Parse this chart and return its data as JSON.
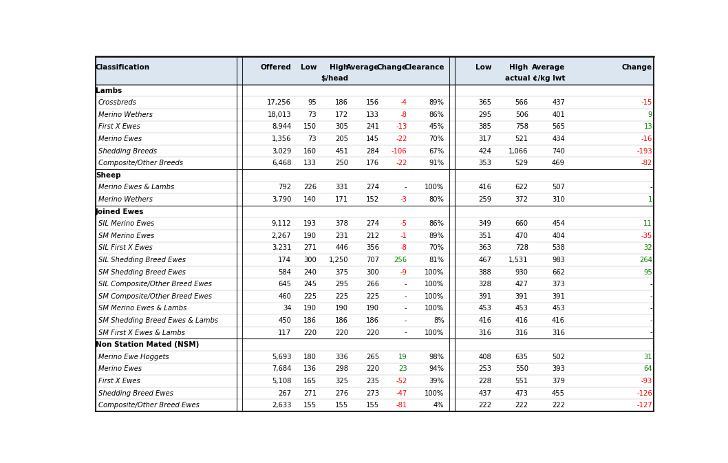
{
  "sections": [
    {
      "section_label": "Lambs",
      "rows": [
        {
          "label": "Crossbreds",
          "offered": "17,256",
          "low": "95",
          "high": "186",
          "avg": "156",
          "change": "-4",
          "change_color": "red",
          "clearance": "89%",
          "low2": "365",
          "high2": "566",
          "avg2": "437",
          "change2": "-15",
          "change2_color": "red"
        },
        {
          "label": "Merino Wethers",
          "offered": "18,013",
          "low": "73",
          "high": "172",
          "avg": "133",
          "change": "-8",
          "change_color": "red",
          "clearance": "86%",
          "low2": "295",
          "high2": "506",
          "avg2": "401",
          "change2": "9",
          "change2_color": "green"
        },
        {
          "label": "First X Ewes",
          "offered": "8,944",
          "low": "150",
          "high": "305",
          "avg": "241",
          "change": "-13",
          "change_color": "red",
          "clearance": "45%",
          "low2": "385",
          "high2": "758",
          "avg2": "565",
          "change2": "13",
          "change2_color": "green"
        },
        {
          "label": "Merino Ewes",
          "offered": "1,356",
          "low": "73",
          "high": "205",
          "avg": "145",
          "change": "-22",
          "change_color": "red",
          "clearance": "70%",
          "low2": "317",
          "high2": "521",
          "avg2": "434",
          "change2": "-16",
          "change2_color": "red"
        },
        {
          "label": "Shedding Breeds",
          "offered": "3,029",
          "low": "160",
          "high": "451",
          "avg": "284",
          "change": "-106",
          "change_color": "red",
          "clearance": "67%",
          "low2": "424",
          "high2": "1,066",
          "avg2": "740",
          "change2": "-193",
          "change2_color": "red"
        },
        {
          "label": "Composite/Other Breeds",
          "offered": "6,468",
          "low": "133",
          "high": "250",
          "avg": "176",
          "change": "-22",
          "change_color": "red",
          "clearance": "91%",
          "low2": "353",
          "high2": "529",
          "avg2": "469",
          "change2": "-82",
          "change2_color": "red"
        }
      ]
    },
    {
      "section_label": "Sheep",
      "rows": [
        {
          "label": "Merino Ewes & Lambs",
          "offered": "792",
          "low": "226",
          "high": "331",
          "avg": "274",
          "change": "-",
          "change_color": "black",
          "clearance": "100%",
          "low2": "416",
          "high2": "622",
          "avg2": "507",
          "change2": "-",
          "change2_color": "black"
        },
        {
          "label": "Merino Wethers",
          "offered": "3,790",
          "low": "140",
          "high": "171",
          "avg": "152",
          "change": "-3",
          "change_color": "red",
          "clearance": "80%",
          "low2": "259",
          "high2": "372",
          "avg2": "310",
          "change2": "1",
          "change2_color": "green"
        }
      ]
    },
    {
      "section_label": "Joined Ewes",
      "rows": [
        {
          "label": "SIL Merino Ewes",
          "offered": "9,112",
          "low": "193",
          "high": "378",
          "avg": "274",
          "change": "-5",
          "change_color": "red",
          "clearance": "86%",
          "low2": "349",
          "high2": "660",
          "avg2": "454",
          "change2": "11",
          "change2_color": "green"
        },
        {
          "label": "SM Merino Ewes",
          "offered": "2,267",
          "low": "190",
          "high": "231",
          "avg": "212",
          "change": "-1",
          "change_color": "red",
          "clearance": "89%",
          "low2": "351",
          "high2": "470",
          "avg2": "404",
          "change2": "-35",
          "change2_color": "red"
        },
        {
          "label": "SIL First X Ewes",
          "offered": "3,231",
          "low": "271",
          "high": "446",
          "avg": "356",
          "change": "-8",
          "change_color": "red",
          "clearance": "70%",
          "low2": "363",
          "high2": "728",
          "avg2": "538",
          "change2": "32",
          "change2_color": "green"
        },
        {
          "label": "SIL Shedding Breed Ewes",
          "offered": "174",
          "low": "300",
          "high": "1,250",
          "avg": "707",
          "change": "256",
          "change_color": "green",
          "clearance": "81%",
          "low2": "467",
          "high2": "1,531",
          "avg2": "983",
          "change2": "264",
          "change2_color": "green"
        },
        {
          "label": "SM Shedding Breed Ewes",
          "offered": "584",
          "low": "240",
          "high": "375",
          "avg": "300",
          "change": "-9",
          "change_color": "red",
          "clearance": "100%",
          "low2": "388",
          "high2": "930",
          "avg2": "662",
          "change2": "95",
          "change2_color": "green"
        },
        {
          "label": "SIL Composite/Other Breed Ewes",
          "offered": "645",
          "low": "245",
          "high": "295",
          "avg": "266",
          "change": "-",
          "change_color": "black",
          "clearance": "100%",
          "low2": "328",
          "high2": "427",
          "avg2": "373",
          "change2": "-",
          "change2_color": "black"
        },
        {
          "label": "SM Composite/Other Breed Ewes",
          "offered": "460",
          "low": "225",
          "high": "225",
          "avg": "225",
          "change": "-",
          "change_color": "black",
          "clearance": "100%",
          "low2": "391",
          "high2": "391",
          "avg2": "391",
          "change2": "-",
          "change2_color": "black"
        },
        {
          "label": "SM Merino Ewes & Lambs",
          "offered": "34",
          "low": "190",
          "high": "190",
          "avg": "190",
          "change": "-",
          "change_color": "black",
          "clearance": "100%",
          "low2": "453",
          "high2": "453",
          "avg2": "453",
          "change2": "-",
          "change2_color": "black"
        },
        {
          "label": "SM Shedding Breed Ewes & Lambs",
          "offered": "450",
          "low": "186",
          "high": "186",
          "avg": "186",
          "change": "-",
          "change_color": "black",
          "clearance": "8%",
          "low2": "416",
          "high2": "416",
          "avg2": "416",
          "change2": "-",
          "change2_color": "black"
        },
        {
          "label": "SM First X Ewes & Lambs",
          "offered": "117",
          "low": "220",
          "high": "220",
          "avg": "220",
          "change": "-",
          "change_color": "black",
          "clearance": "100%",
          "low2": "316",
          "high2": "316",
          "avg2": "316",
          "change2": "-",
          "change2_color": "black"
        }
      ]
    },
    {
      "section_label": "Non Station Mated (NSM)",
      "rows": [
        {
          "label": "Merino Ewe Hoggets",
          "offered": "5,693",
          "low": "180",
          "high": "336",
          "avg": "265",
          "change": "19",
          "change_color": "green",
          "clearance": "98%",
          "low2": "408",
          "high2": "635",
          "avg2": "502",
          "change2": "31",
          "change2_color": "green"
        },
        {
          "label": "Merino Ewes",
          "offered": "7,684",
          "low": "136",
          "high": "298",
          "avg": "220",
          "change": "23",
          "change_color": "green",
          "clearance": "94%",
          "low2": "253",
          "high2": "550",
          "avg2": "393",
          "change2": "64",
          "change2_color": "green"
        },
        {
          "label": "First X Ewes",
          "offered": "5,108",
          "low": "165",
          "high": "325",
          "avg": "235",
          "change": "-52",
          "change_color": "red",
          "clearance": "39%",
          "low2": "228",
          "high2": "551",
          "avg2": "379",
          "change2": "-93",
          "change2_color": "red"
        },
        {
          "label": "Shedding Breed Ewes",
          "offered": "267",
          "low": "271",
          "high": "276",
          "avg": "273",
          "change": "-47",
          "change_color": "red",
          "clearance": "100%",
          "low2": "437",
          "high2": "473",
          "avg2": "455",
          "change2": "-126",
          "change2_color": "red"
        },
        {
          "label": "Composite/Other Breed Ewes",
          "offered": "2,633",
          "low": "155",
          "high": "155",
          "avg": "155",
          "change": "-81",
          "change_color": "red",
          "clearance": "4%",
          "low2": "222",
          "high2": "222",
          "avg2": "222",
          "change2": "-127",
          "change2_color": "red"
        }
      ]
    }
  ],
  "bg_color": "#ffffff",
  "header_bg": "#dce6f1",
  "col_colors": [
    "red",
    "green"
  ],
  "font_size": 7.2,
  "header_font_size": 7.5
}
